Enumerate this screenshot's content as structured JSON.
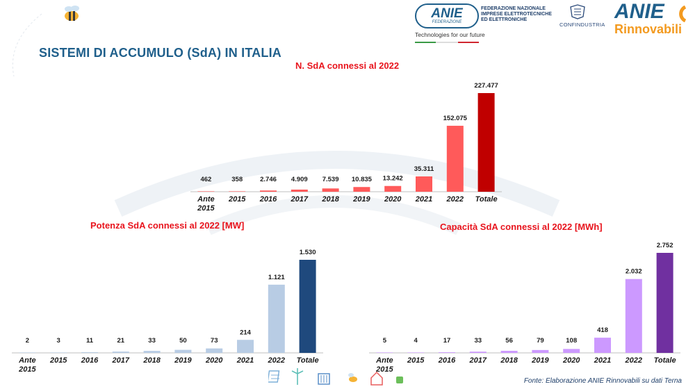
{
  "header": {
    "slide_title": "SISTEMI DI ACCUMULO (SdA) IN ITALIA",
    "anie_logo_word": "ANIE",
    "anie_logo_sub": "FEDERAZIONE",
    "federazione_lines": [
      "FEDERAZIONE NAZIONALE",
      "IMPRESE ELETTROTECNICHE",
      "ED ELETTRONICHE"
    ],
    "tagline": "Technologies for our future",
    "confindustria": "CONFINDUSTRIA",
    "rinnovabili_logo_top": "ANIE",
    "rinnovabili_logo_bottom": "Rinnovabili"
  },
  "footer": {
    "source": "Fonte: Elaborazione ANIE Rinnovabili su dati Terna"
  },
  "colors": {
    "title_blue": "#1f5f8b",
    "chart_title_red": "#e8141d",
    "n_bar": "#ff5a5a",
    "n_total": "#c00000",
    "pot_bar": "#b8cce4",
    "pot_total": "#1f497d",
    "cap_bar": "#cc99ff",
    "cap_total": "#7030a0"
  },
  "chart_data": [
    {
      "type": "bar",
      "title": "N. SdA connessi al 2022",
      "categories": [
        "Ante 2015",
        "2015",
        "2016",
        "2017",
        "2018",
        "2019",
        "2020",
        "2021",
        "2022",
        "Totale"
      ],
      "values": [
        462,
        358,
        2746,
        4909,
        7539,
        10835,
        13242,
        35311,
        152075,
        227477
      ],
      "labels": [
        "462",
        "358",
        "2.746",
        "4.909",
        "7.539",
        "10.835",
        "13.242",
        "35.311",
        "152.075",
        "227.477"
      ],
      "ylim": [
        0,
        227477
      ],
      "xlabel": "",
      "ylabel": "",
      "grid": false,
      "legend": false
    },
    {
      "type": "bar",
      "title": "Potenza SdA connessi al 2022 [MW]",
      "categories": [
        "Ante 2015",
        "2015",
        "2016",
        "2017",
        "2018",
        "2019",
        "2020",
        "2021",
        "2022",
        "Totale"
      ],
      "values": [
        2,
        3,
        11,
        21,
        33,
        50,
        73,
        214,
        1121,
        1530
      ],
      "labels": [
        "2",
        "3",
        "11",
        "21",
        "33",
        "50",
        "73",
        "214",
        "1.121",
        "1.530"
      ],
      "ylim": [
        0,
        1530
      ],
      "xlabel": "",
      "ylabel": "",
      "grid": false,
      "legend": false
    },
    {
      "type": "bar",
      "title": "Capacità SdA connessi al 2022 [MWh]",
      "categories": [
        "Ante 2015",
        "2015",
        "2016",
        "2017",
        "2018",
        "2019",
        "2020",
        "2021",
        "2022",
        "Totale"
      ],
      "values": [
        5,
        4,
        17,
        33,
        56,
        79,
        108,
        418,
        2032,
        2752
      ],
      "labels": [
        "5",
        "4",
        "17",
        "33",
        "56",
        "79",
        "108",
        "418",
        "2.032",
        "2.752"
      ],
      "ylim": [
        0,
        2752
      ],
      "xlabel": "",
      "ylabel": "",
      "grid": false,
      "legend": false
    }
  ]
}
